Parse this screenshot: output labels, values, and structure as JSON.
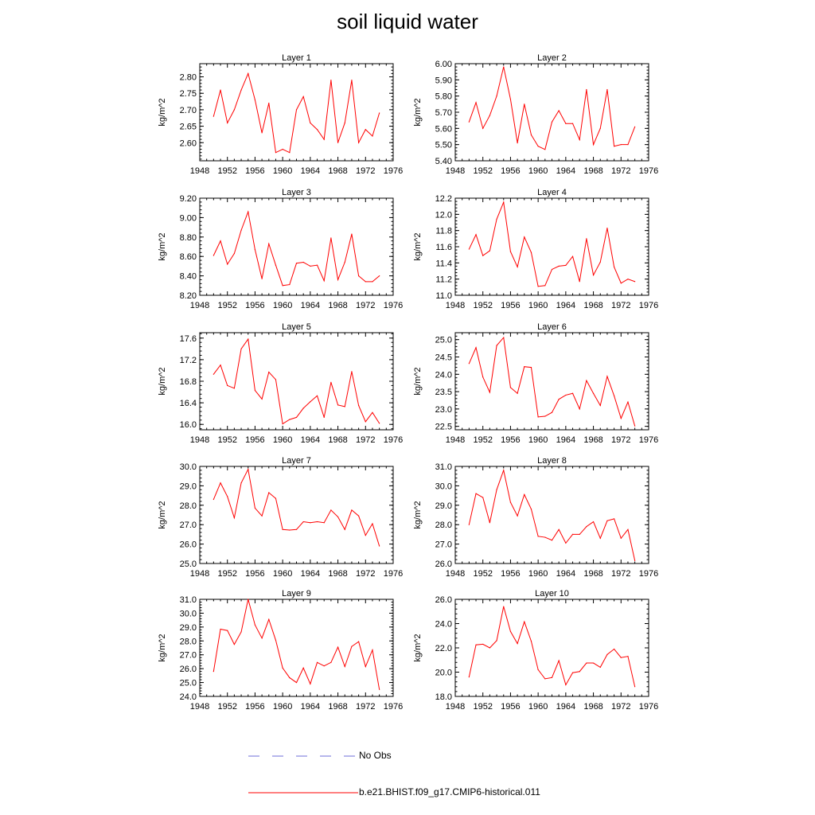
{
  "title": "soil liquid water",
  "legend": {
    "obs_label": "No Obs",
    "obs_color": "#6d6dd9",
    "model_label": "b.e21.BHIST.f09_g17.CMIP6-historical.011",
    "model_color": "#ff0000"
  },
  "chart_data": [
    {
      "type": "line",
      "title": "Layer 1",
      "ylabel": "kg/m^2",
      "xlim": [
        1948,
        1976
      ],
      "xticks": [
        1948,
        1952,
        1956,
        1960,
        1964,
        1968,
        1972,
        1976
      ],
      "ylim": [
        2.545,
        2.84
      ],
      "yticks": [
        "2.60",
        "2.65",
        "2.70",
        "2.75",
        "2.80"
      ],
      "ytick_values": [
        2.6,
        2.65,
        2.7,
        2.75,
        2.8
      ],
      "x": [
        1950,
        1951,
        1952,
        1953,
        1954,
        1955,
        1956,
        1957,
        1958,
        1959,
        1960,
        1961,
        1962,
        1963,
        1964,
        1965,
        1966,
        1967,
        1968,
        1969,
        1970,
        1971,
        1972,
        1973,
        1974
      ],
      "values": [
        2.68,
        2.76,
        2.66,
        2.7,
        2.76,
        2.81,
        2.73,
        2.63,
        2.72,
        2.57,
        2.58,
        2.57,
        2.7,
        2.74,
        2.66,
        2.64,
        2.61,
        2.79,
        2.6,
        2.66,
        2.79,
        2.6,
        2.64,
        2.62,
        2.69
      ]
    },
    {
      "type": "line",
      "title": "Layer 2",
      "ylabel": "kg/m^2",
      "xlim": [
        1948,
        1976
      ],
      "xticks": [
        1948,
        1952,
        1956,
        1960,
        1964,
        1968,
        1972,
        1976
      ],
      "ylim": [
        5.4,
        6.0
      ],
      "yticks": [
        "5.40",
        "5.50",
        "5.60",
        "5.70",
        "5.80",
        "5.90",
        "6.00"
      ],
      "ytick_values": [
        5.4,
        5.5,
        5.6,
        5.7,
        5.8,
        5.9,
        6.0
      ],
      "x": [
        1950,
        1951,
        1952,
        1953,
        1954,
        1955,
        1956,
        1957,
        1958,
        1959,
        1960,
        1961,
        1962,
        1963,
        1964,
        1965,
        1966,
        1967,
        1968,
        1969,
        1970,
        1971,
        1972,
        1973,
        1974
      ],
      "values": [
        5.64,
        5.76,
        5.6,
        5.68,
        5.8,
        5.98,
        5.78,
        5.51,
        5.75,
        5.56,
        5.49,
        5.47,
        5.64,
        5.71,
        5.63,
        5.63,
        5.53,
        5.84,
        5.5,
        5.6,
        5.84,
        5.49,
        5.5,
        5.5,
        5.61
      ]
    },
    {
      "type": "line",
      "title": "Layer 3",
      "ylabel": "kg/m^2",
      "xlim": [
        1948,
        1976
      ],
      "xticks": [
        1948,
        1952,
        1956,
        1960,
        1964,
        1968,
        1972,
        1976
      ],
      "ylim": [
        8.2,
        9.2
      ],
      "yticks": [
        "8.20",
        "8.40",
        "8.60",
        "8.80",
        "9.00",
        "9.20"
      ],
      "ytick_values": [
        8.2,
        8.4,
        8.6,
        8.8,
        9.0,
        9.2
      ],
      "x": [
        1950,
        1951,
        1952,
        1953,
        1954,
        1955,
        1956,
        1957,
        1958,
        1959,
        1960,
        1961,
        1962,
        1963,
        1964,
        1965,
        1966,
        1967,
        1968,
        1969,
        1970,
        1971,
        1972,
        1973,
        1974
      ],
      "values": [
        8.61,
        8.76,
        8.52,
        8.63,
        8.87,
        9.06,
        8.67,
        8.37,
        8.73,
        8.51,
        8.3,
        8.31,
        8.53,
        8.54,
        8.5,
        8.51,
        8.35,
        8.79,
        8.36,
        8.54,
        8.83,
        8.4,
        8.34,
        8.34,
        8.4
      ]
    },
    {
      "type": "line",
      "title": "Layer 4",
      "ylabel": "kg/m^2",
      "xlim": [
        1948,
        1976
      ],
      "xticks": [
        1948,
        1952,
        1956,
        1960,
        1964,
        1968,
        1972,
        1976
      ],
      "ylim": [
        11.0,
        12.2
      ],
      "yticks": [
        "11.0",
        "11.2",
        "11.4",
        "11.6",
        "11.8",
        "12.0",
        "12.2"
      ],
      "ytick_values": [
        11.0,
        11.2,
        11.4,
        11.6,
        11.8,
        12.0,
        12.2
      ],
      "x": [
        1950,
        1951,
        1952,
        1953,
        1954,
        1955,
        1956,
        1957,
        1958,
        1959,
        1960,
        1961,
        1962,
        1963,
        1964,
        1965,
        1966,
        1967,
        1968,
        1969,
        1970,
        1971,
        1972,
        1973,
        1974
      ],
      "values": [
        11.57,
        11.75,
        11.49,
        11.55,
        11.94,
        12.15,
        11.54,
        11.35,
        11.72,
        11.53,
        11.11,
        11.12,
        11.32,
        11.36,
        11.37,
        11.48,
        11.17,
        11.7,
        11.25,
        11.41,
        11.83,
        11.35,
        11.15,
        11.2,
        11.17
      ]
    },
    {
      "type": "line",
      "title": "Layer 5",
      "ylabel": "kg/m^2",
      "xlim": [
        1948,
        1976
      ],
      "xticks": [
        1948,
        1952,
        1956,
        1960,
        1964,
        1968,
        1972,
        1976
      ],
      "ylim": [
        15.9,
        17.7
      ],
      "yticks": [
        "16.0",
        "16.4",
        "16.8",
        "17.2",
        "17.6"
      ],
      "ytick_values": [
        16.0,
        16.4,
        16.8,
        17.2,
        17.6
      ],
      "x": [
        1950,
        1951,
        1952,
        1953,
        1954,
        1955,
        1956,
        1957,
        1958,
        1959,
        1960,
        1961,
        1962,
        1963,
        1964,
        1965,
        1966,
        1967,
        1968,
        1969,
        1970,
        1971,
        1972,
        1973,
        1974
      ],
      "values": [
        16.93,
        17.1,
        16.72,
        16.67,
        17.4,
        17.58,
        16.63,
        16.47,
        16.97,
        16.83,
        16.01,
        16.09,
        16.13,
        16.3,
        16.42,
        16.53,
        16.13,
        16.78,
        16.36,
        16.33,
        16.98,
        16.35,
        16.05,
        16.22,
        16.02
      ]
    },
    {
      "type": "line",
      "title": "Layer 6",
      "ylabel": "kg/m^2",
      "xlim": [
        1948,
        1976
      ],
      "xticks": [
        1948,
        1952,
        1956,
        1960,
        1964,
        1968,
        1972,
        1976
      ],
      "ylim": [
        22.4,
        25.2
      ],
      "yticks": [
        "22.5",
        "23.0",
        "23.5",
        "24.0",
        "24.5",
        "25.0"
      ],
      "ytick_values": [
        22.5,
        23.0,
        23.5,
        24.0,
        24.5,
        25.0
      ],
      "x": [
        1950,
        1951,
        1952,
        1953,
        1954,
        1955,
        1956,
        1957,
        1958,
        1959,
        1960,
        1961,
        1962,
        1963,
        1964,
        1965,
        1966,
        1967,
        1968,
        1969,
        1970,
        1971,
        1972,
        1973,
        1974
      ],
      "values": [
        24.31,
        24.77,
        23.92,
        23.48,
        24.83,
        25.06,
        23.62,
        23.45,
        24.22,
        24.2,
        22.77,
        22.79,
        22.9,
        23.28,
        23.4,
        23.45,
        23.0,
        23.82,
        23.45,
        23.1,
        23.94,
        23.38,
        22.73,
        23.2,
        22.51
      ]
    },
    {
      "type": "line",
      "title": "Layer 7",
      "ylabel": "kg/m^2",
      "xlim": [
        1948,
        1976
      ],
      "xticks": [
        1948,
        1952,
        1956,
        1960,
        1964,
        1968,
        1972,
        1976
      ],
      "ylim": [
        25.0,
        30.0
      ],
      "yticks": [
        "25.0",
        "26.0",
        "27.0",
        "28.0",
        "29.0",
        "30.0"
      ],
      "ytick_values": [
        25.0,
        26.0,
        27.0,
        28.0,
        29.0,
        30.0
      ],
      "x": [
        1950,
        1951,
        1952,
        1953,
        1954,
        1955,
        1956,
        1957,
        1958,
        1959,
        1960,
        1961,
        1962,
        1963,
        1964,
        1965,
        1966,
        1967,
        1968,
        1969,
        1970,
        1971,
        1972,
        1973,
        1974
      ],
      "values": [
        28.3,
        29.15,
        28.45,
        27.35,
        29.15,
        29.85,
        27.85,
        27.45,
        28.65,
        28.35,
        26.75,
        26.72,
        26.75,
        27.15,
        27.1,
        27.15,
        27.1,
        27.75,
        27.4,
        26.75,
        27.75,
        27.45,
        26.45,
        27.05,
        25.9
      ]
    },
    {
      "type": "line",
      "title": "Layer 8",
      "ylabel": "kg/m^2",
      "xlim": [
        1948,
        1976
      ],
      "xticks": [
        1948,
        1952,
        1956,
        1960,
        1964,
        1968,
        1972,
        1976
      ],
      "ylim": [
        26.0,
        31.0
      ],
      "yticks": [
        "26.0",
        "27.0",
        "28.0",
        "29.0",
        "30.0",
        "31.0"
      ],
      "ytick_values": [
        26.0,
        27.0,
        28.0,
        29.0,
        30.0,
        31.0
      ],
      "x": [
        1950,
        1951,
        1952,
        1953,
        1954,
        1955,
        1956,
        1957,
        1958,
        1959,
        1960,
        1961,
        1962,
        1963,
        1964,
        1965,
        1966,
        1967,
        1968,
        1969,
        1970,
        1971,
        1972,
        1973,
        1974
      ],
      "values": [
        28.0,
        29.6,
        29.4,
        28.1,
        29.8,
        30.8,
        29.15,
        28.45,
        29.55,
        28.8,
        27.4,
        27.35,
        27.2,
        27.75,
        27.05,
        27.5,
        27.5,
        27.9,
        28.15,
        27.3,
        28.2,
        28.3,
        27.3,
        27.75,
        26.15
      ]
    },
    {
      "type": "line",
      "title": "Layer 9",
      "ylabel": "kg/m^2",
      "xlim": [
        1948,
        1976
      ],
      "xticks": [
        1948,
        1952,
        1956,
        1960,
        1964,
        1968,
        1972,
        1976
      ],
      "ylim": [
        24.0,
        31.0
      ],
      "yticks": [
        "24.0",
        "25.0",
        "26.0",
        "27.0",
        "28.0",
        "29.0",
        "30.0",
        "31.0"
      ],
      "ytick_values": [
        24.0,
        25.0,
        26.0,
        27.0,
        28.0,
        29.0,
        30.0,
        31.0
      ],
      "x": [
        1950,
        1951,
        1952,
        1953,
        1954,
        1955,
        1956,
        1957,
        1958,
        1959,
        1960,
        1961,
        1962,
        1963,
        1964,
        1965,
        1966,
        1967,
        1968,
        1969,
        1970,
        1971,
        1972,
        1973,
        1974
      ],
      "values": [
        25.8,
        28.85,
        28.75,
        27.75,
        28.65,
        31.0,
        29.15,
        28.2,
        29.55,
        28.05,
        26.05,
        25.35,
        25.0,
        26.05,
        24.9,
        26.45,
        26.2,
        26.45,
        27.55,
        26.15,
        27.6,
        27.95,
        26.15,
        27.35,
        24.5
      ]
    },
    {
      "type": "line",
      "title": "Layer 10",
      "ylabel": "kg/m^2",
      "xlim": [
        1948,
        1976
      ],
      "xticks": [
        1948,
        1952,
        1956,
        1960,
        1964,
        1968,
        1972,
        1976
      ],
      "ylim": [
        18.0,
        26.0
      ],
      "yticks": [
        "18.0",
        "20.0",
        "22.0",
        "24.0",
        "26.0"
      ],
      "ytick_values": [
        18.0,
        20.0,
        22.0,
        24.0,
        26.0
      ],
      "x": [
        1950,
        1951,
        1952,
        1953,
        1954,
        1955,
        1956,
        1957,
        1958,
        1959,
        1960,
        1961,
        1962,
        1963,
        1964,
        1965,
        1966,
        1967,
        1968,
        1969,
        1970,
        1971,
        1972,
        1973,
        1974
      ],
      "values": [
        19.6,
        22.25,
        22.3,
        22.0,
        22.6,
        25.4,
        23.35,
        22.35,
        24.15,
        22.55,
        20.2,
        19.45,
        19.55,
        20.95,
        18.95,
        19.95,
        20.05,
        20.75,
        20.75,
        20.4,
        21.45,
        21.9,
        21.2,
        21.3,
        18.8
      ]
    }
  ]
}
